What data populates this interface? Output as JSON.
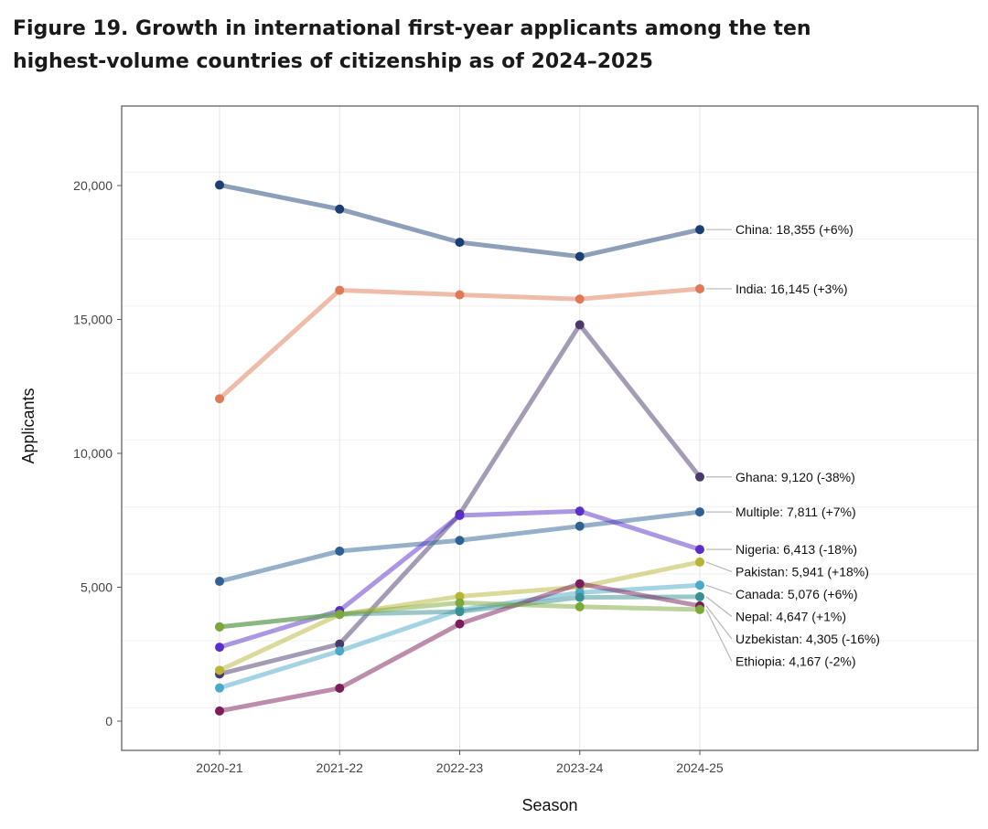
{
  "title": "Figure 19. Growth in international first-year applicants among the ten highest-volume countries of citizenship as of 2024–2025",
  "chart_data": {
    "type": "line",
    "title": "Figure 19. Growth in international first-year applicants among the ten highest-volume countries of citizenship as of 2024–2025",
    "xlabel": "Season",
    "ylabel": "Applicants",
    "categories": [
      "2020-21",
      "2021-22",
      "2022-23",
      "2023-24",
      "2024-25"
    ],
    "ylim": [
      -2000,
      23000
    ],
    "yticks": [
      0,
      5000,
      10000,
      15000,
      20000
    ],
    "ytick_labels": [
      "0",
      "5,000",
      "10,000",
      "15,000",
      "20,000"
    ],
    "grid": true,
    "legend": "direct labels at right end of lines",
    "series": [
      {
        "name": "China",
        "values": [
          20020,
          19120,
          17880,
          17350,
          18355
        ],
        "color": "#1b3f73",
        "label": "China: 18,355 (+6%)"
      },
      {
        "name": "India",
        "values": [
          12040,
          16090,
          15920,
          15760,
          16145
        ],
        "color": "#e07a56",
        "label": "India: 16,145 (+3%)"
      },
      {
        "name": "Ghana",
        "values": [
          1760,
          2880,
          7730,
          14800,
          9120
        ],
        "color": "#4a3a6b",
        "label": "Ghana: 9,120 (-38%)"
      },
      {
        "name": "Multiple",
        "values": [
          5220,
          6350,
          6750,
          7280,
          7811
        ],
        "color": "#2f6294",
        "label": "Multiple: 7,811 (+7%)"
      },
      {
        "name": "Nigeria",
        "values": [
          2760,
          4130,
          7680,
          7840,
          6413
        ],
        "color": "#5a2fc8",
        "label": "Nigeria: 6,413 (-18%)"
      },
      {
        "name": "Pakistan",
        "values": [
          1900,
          3980,
          4660,
          5010,
          5941
        ],
        "color": "#b8b535",
        "label": "Pakistan: 5,941 (+18%)"
      },
      {
        "name": "Canada",
        "values": [
          1240,
          2620,
          4150,
          4800,
          5076
        ],
        "color": "#4aa8c8",
        "label": "Canada: 5,076 (+6%)"
      },
      {
        "name": "Nepal",
        "values": [
          3520,
          3990,
          4090,
          4620,
          4647
        ],
        "color": "#3a8f93",
        "label": "Nepal: 4,647 (+1%)"
      },
      {
        "name": "Uzbekistan",
        "values": [
          380,
          1230,
          3630,
          5130,
          4305
        ],
        "color": "#7a1d5a",
        "label": "Uzbekistan: 4,305 (-16%)"
      },
      {
        "name": "Ethiopia",
        "values": [
          3520,
          3990,
          4420,
          4270,
          4167
        ],
        "color": "#7ca83a",
        "label": "Ethiopia: 4,167 (-2%)"
      }
    ]
  }
}
